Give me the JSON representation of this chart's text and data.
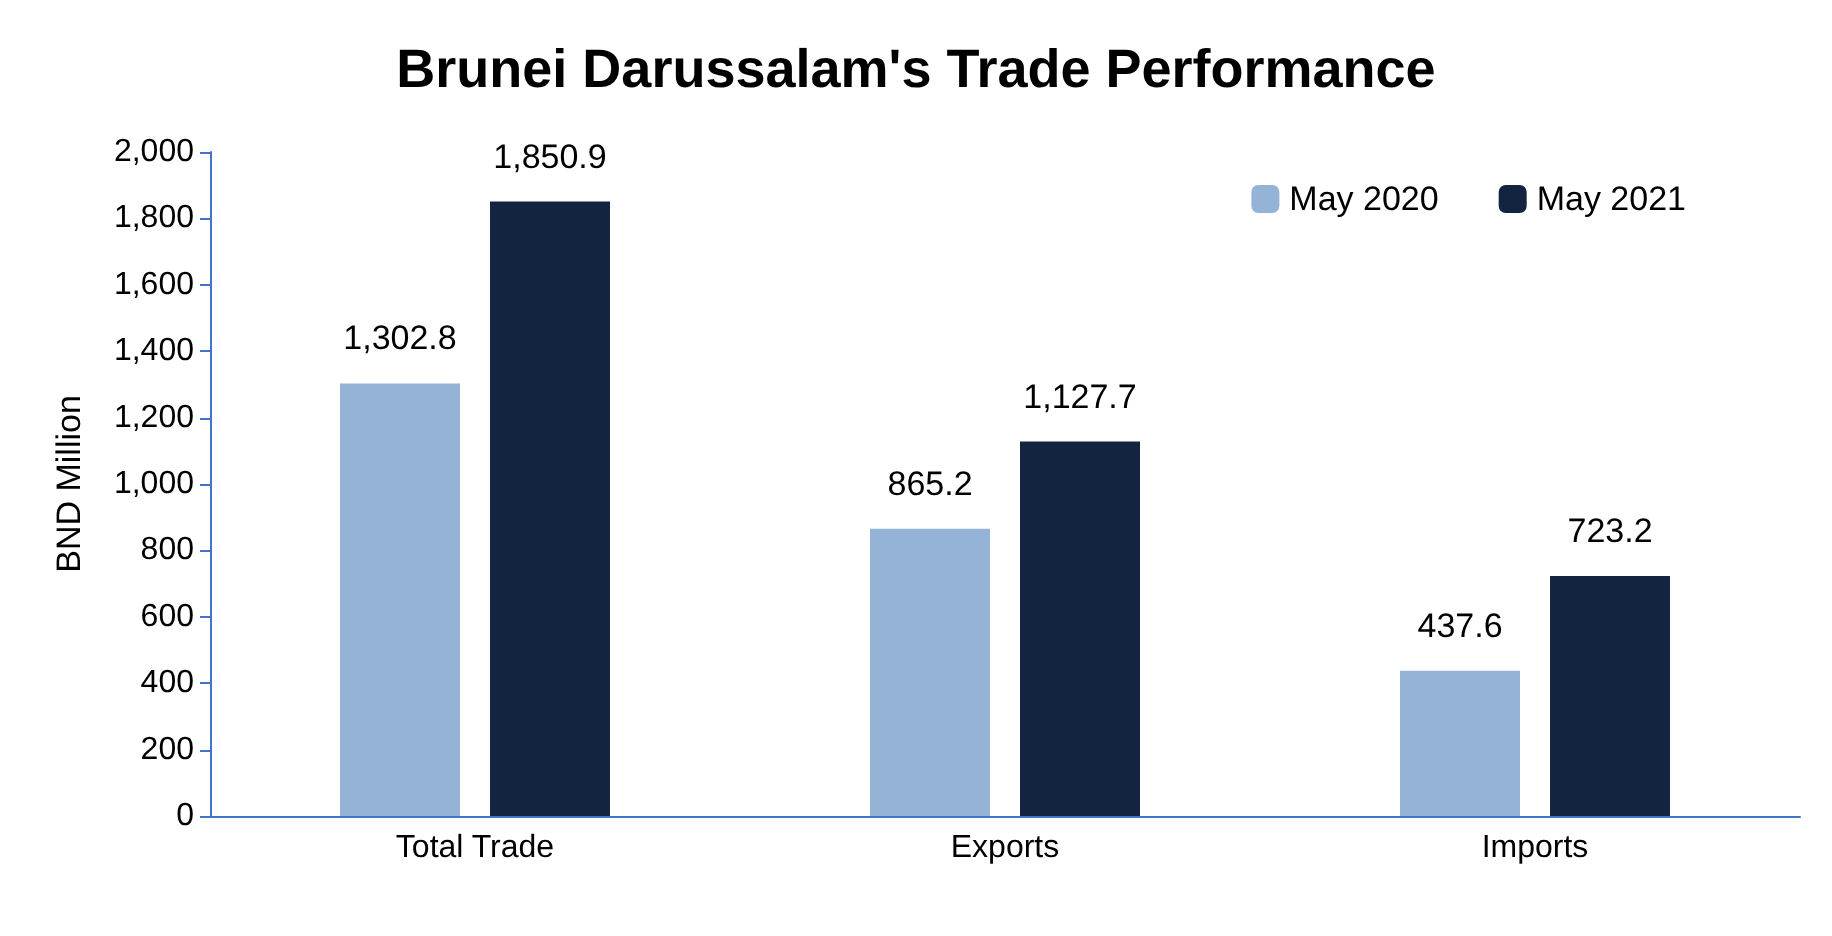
{
  "chart_data": {
    "type": "bar",
    "title": "Brunei Darussalam's Trade Performance",
    "ylabel": "BND Million",
    "categories": [
      "Total Trade",
      "Exports",
      "Imports"
    ],
    "series": [
      {
        "name": "May 2020",
        "color": "#95b3d7",
        "values": [
          1302.8,
          865.2,
          437.6
        ],
        "value_labels": [
          "1,302.8",
          "865.2",
          "437.6"
        ]
      },
      {
        "name": "May 2021",
        "color": "#12243f",
        "values": [
          1850.9,
          1127.7,
          723.2
        ],
        "value_labels": [
          "1,850.9",
          "1,127.7",
          "723.2"
        ]
      }
    ],
    "ylim": [
      0,
      2000
    ],
    "yticks": [
      0,
      200,
      400,
      600,
      800,
      {
        "value": 1000,
        "label": "1,000"
      },
      {
        "value": 1200,
        "label": "1,200"
      },
      {
        "value": 1400,
        "label": "1,400"
      },
      {
        "value": 1600,
        "label": "1,600"
      },
      {
        "value": 1800,
        "label": "1,800"
      },
      {
        "value": 2000,
        "label": "2,000"
      }
    ],
    "grid": false,
    "legend": "top right"
  }
}
